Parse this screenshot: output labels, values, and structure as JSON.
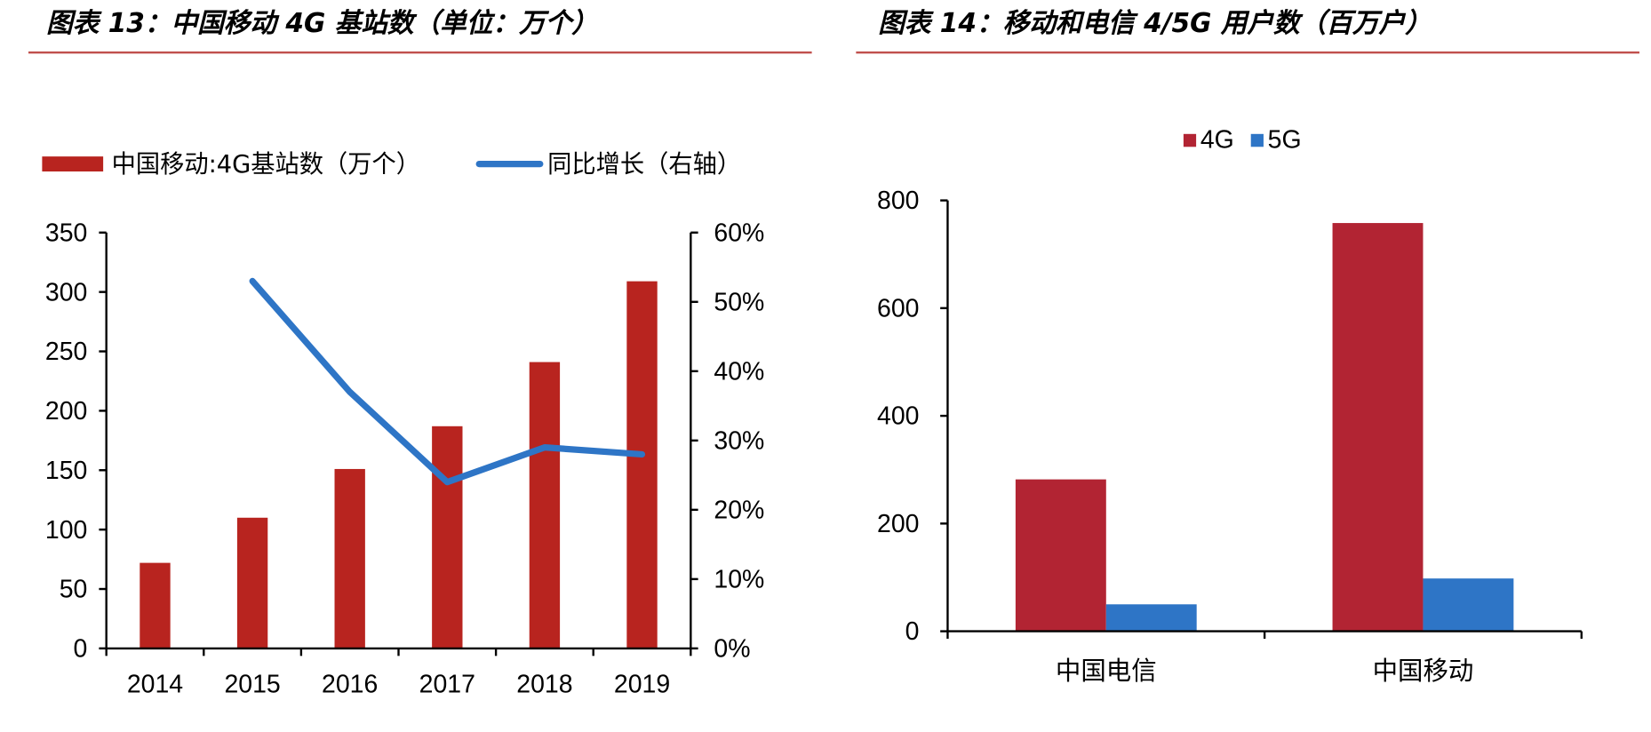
{
  "left_figure": {
    "title": "图表 13：中国移动 4G 基站数（单位：万个）"
  },
  "right_figure": {
    "title": "图表 14：移动和电信 4/5G 用户数（百万户）"
  },
  "colors": {
    "title_rule": "#c0504d",
    "bar_dark_red": "#b8241f",
    "line_blue": "#2e75c6",
    "bar_4g": "#b22433",
    "bar_5g": "#2e75c6"
  },
  "chart_data": [
    {
      "type": "bar",
      "categories": [
        "2014",
        "2015",
        "2016",
        "2017",
        "2018",
        "2019"
      ],
      "series": [
        {
          "name": "中国移动:4G基站数（万个）",
          "type": "bar",
          "axis": "left",
          "values": [
            72,
            110,
            151,
            187,
            241,
            309
          ]
        },
        {
          "name": "同比增长（右轴）",
          "type": "line",
          "axis": "right",
          "values": [
            null,
            0.53,
            0.37,
            0.24,
            0.29,
            0.28
          ]
        }
      ],
      "y_left": {
        "min": 0,
        "max": 350,
        "ticks": [
          0,
          50,
          100,
          150,
          200,
          250,
          300,
          350
        ]
      },
      "y_right": {
        "min": 0,
        "max": 0.6,
        "ticks": [
          "0%",
          "10%",
          "20%",
          "30%",
          "40%",
          "50%",
          "60%"
        ]
      },
      "legend": "top"
    },
    {
      "type": "bar",
      "categories": [
        "中国电信",
        "中国移动"
      ],
      "series": [
        {
          "name": "4G",
          "values": [
            282,
            758
          ]
        },
        {
          "name": "5G",
          "values": [
            50,
            98
          ]
        }
      ],
      "ylim": [
        0,
        800
      ],
      "y_ticks": [
        0,
        200,
        400,
        600,
        800
      ],
      "legend": "top"
    }
  ]
}
